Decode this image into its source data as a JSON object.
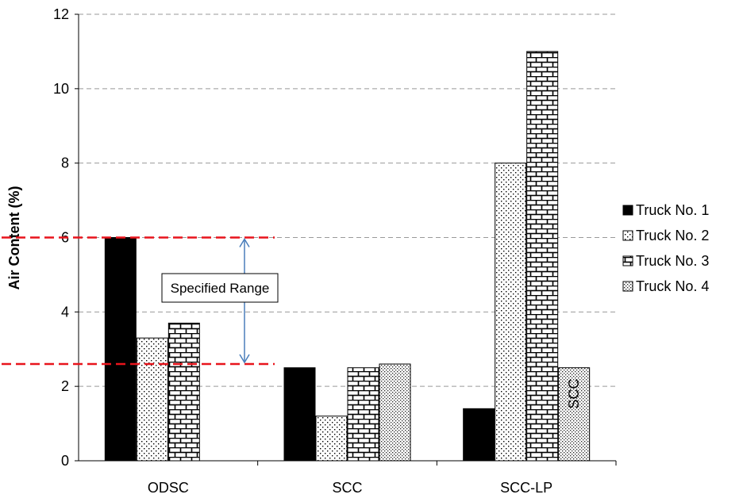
{
  "chart_data": {
    "type": "bar",
    "categories": [
      "ODSC",
      "SCC",
      "SCC-LP"
    ],
    "series": [
      {
        "name": "Truck No. 1",
        "values": [
          6.0,
          2.5,
          1.4
        ]
      },
      {
        "name": "Truck No. 2",
        "values": [
          3.3,
          1.2,
          8.0
        ]
      },
      {
        "name": "Truck No. 3",
        "values": [
          3.7,
          2.5,
          11.0
        ]
      },
      {
        "name": "Truck No. 4",
        "values": [
          null,
          2.6,
          2.5
        ]
      }
    ],
    "ylabel": "Air Content (%)",
    "ylim": [
      0,
      12
    ],
    "yticks": [
      0,
      2,
      4,
      6,
      8,
      10,
      12
    ],
    "grid": "horizontal-dashed",
    "legend": "right",
    "annotations": {
      "specified_range_label": "Specified Range",
      "specified_range": [
        2.6,
        6.0
      ],
      "bar_label": "SCC"
    }
  }
}
